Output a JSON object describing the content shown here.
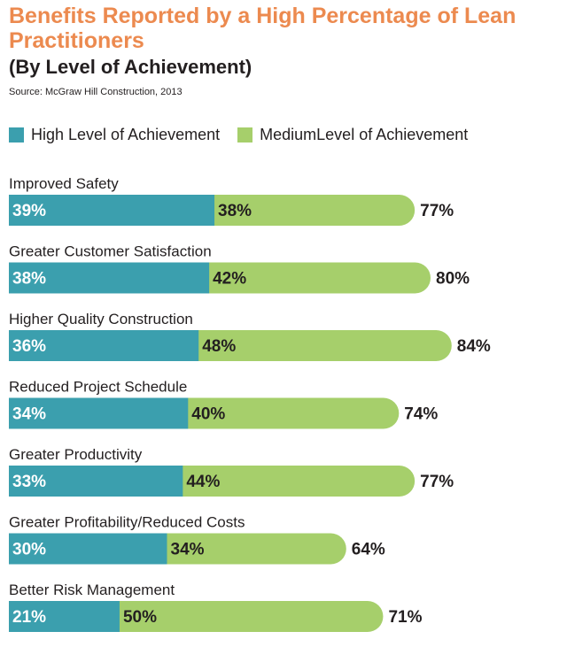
{
  "colors": {
    "title": "#ec8a4f",
    "high": "#3b9fae",
    "medium": "#a6cf6b",
    "text": "#231f20",
    "bar_label": "#ffffff"
  },
  "header": {
    "title": "Benefits Reported by a High Percentage of Lean Practitioners",
    "subtitle": "(By Level of Achievement)",
    "source": "Source: McGraw Hill Construction, 2013"
  },
  "legend": {
    "high": "High Level of Achievement",
    "medium": "MediumLevel of Achievement"
  },
  "chart_data": {
    "type": "bar",
    "orientation": "horizontal",
    "stacked": true,
    "title": "Benefits Reported by a High Percentage of Lean Practitioners",
    "subtitle": "(By Level of Achievement)",
    "categories": [
      "Improved Safety",
      "Greater Customer Satisfaction",
      "Higher Quality Construction",
      "Reduced Project Schedule",
      "Greater Productivity",
      "Greater Profitability/Reduced Costs",
      "Better Risk Management"
    ],
    "series": [
      {
        "name": "High Level of Achievement",
        "values": [
          39,
          38,
          36,
          34,
          33,
          30,
          21
        ]
      },
      {
        "name": "MediumLevel of Achievement",
        "values": [
          38,
          42,
          48,
          40,
          44,
          34,
          50
        ]
      }
    ],
    "totals": [
      77,
      80,
      84,
      74,
      77,
      64,
      71
    ],
    "value_suffix": "%",
    "legend_position": "top",
    "grid": false
  }
}
